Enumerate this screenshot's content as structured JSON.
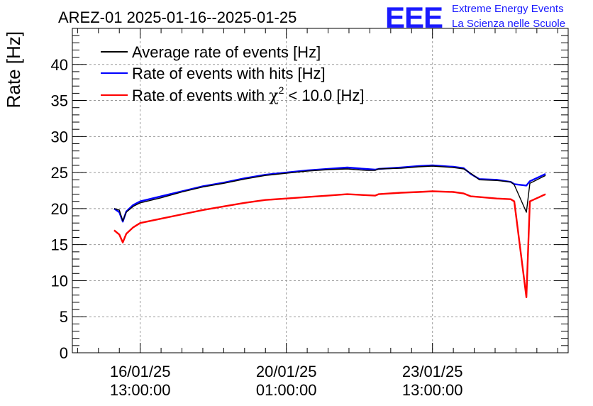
{
  "chart_data": {
    "type": "line",
    "title": "AREZ-01 2025-01-16--2025-01-25",
    "ylabel": "Rate [Hz]",
    "xlabel": "",
    "ylim": [
      0,
      45
    ],
    "y_ticks": [
      0,
      5,
      10,
      15,
      20,
      25,
      30,
      35,
      40
    ],
    "x_ticks": [
      {
        "line1": "16/01/25",
        "line2": "13:00:00",
        "t": 0
      },
      {
        "line1": "20/01/25",
        "line2": "01:00:00",
        "t": 84
      },
      {
        "line1": "23/01/25",
        "line2": "13:00:00",
        "t": 168
      }
    ],
    "xlim": [
      -39,
      246
    ],
    "grid": true,
    "legend_position": "top-left",
    "series": [
      {
        "name": "Average rate of events [Hz]",
        "color": "#000000",
        "points": [
          [
            -15,
            20.0
          ],
          [
            -12,
            19.8
          ],
          [
            -10,
            18.3
          ],
          [
            -8,
            19.5
          ],
          [
            -4,
            20.3
          ],
          [
            0,
            20.8
          ],
          [
            12,
            21.5
          ],
          [
            24,
            22.3
          ],
          [
            36,
            23.0
          ],
          [
            48,
            23.5
          ],
          [
            60,
            24.1
          ],
          [
            72,
            24.6
          ],
          [
            84,
            24.9
          ],
          [
            96,
            25.2
          ],
          [
            108,
            25.4
          ],
          [
            119,
            25.5
          ],
          [
            130,
            25.3
          ],
          [
            135,
            25.3
          ],
          [
            137,
            25.5
          ],
          [
            150,
            25.6
          ],
          [
            160,
            25.8
          ],
          [
            168,
            25.9
          ],
          [
            180,
            25.7
          ],
          [
            186,
            25.5
          ],
          [
            190,
            24.9
          ],
          [
            195,
            24.0
          ],
          [
            205,
            23.9
          ],
          [
            213,
            23.7
          ],
          [
            215,
            23.3
          ],
          [
            222,
            19.5
          ],
          [
            224,
            23.5
          ],
          [
            233,
            24.6
          ]
        ]
      },
      {
        "name": "Rate of events with hits [Hz]",
        "color": "#0000ff",
        "points": [
          [
            -15,
            20.0
          ],
          [
            -12,
            19.5
          ],
          [
            -10,
            18.2
          ],
          [
            -8,
            19.6
          ],
          [
            -4,
            20.5
          ],
          [
            0,
            21.0
          ],
          [
            12,
            21.7
          ],
          [
            24,
            22.4
          ],
          [
            36,
            23.1
          ],
          [
            48,
            23.6
          ],
          [
            60,
            24.2
          ],
          [
            72,
            24.7
          ],
          [
            84,
            25.0
          ],
          [
            96,
            25.3
          ],
          [
            108,
            25.5
          ],
          [
            119,
            25.7
          ],
          [
            135,
            25.4
          ],
          [
            137,
            25.5
          ],
          [
            150,
            25.7
          ],
          [
            160,
            25.9
          ],
          [
            168,
            26.0
          ],
          [
            180,
            25.8
          ],
          [
            186,
            25.6
          ],
          [
            190,
            24.8
          ],
          [
            195,
            24.1
          ],
          [
            205,
            24.0
          ],
          [
            213,
            23.7
          ],
          [
            215,
            23.4
          ],
          [
            222,
            23.2
          ],
          [
            224,
            23.8
          ],
          [
            233,
            24.8
          ]
        ]
      },
      {
        "name": "Rate of events with χ² < 10.0 [Hz]",
        "legend_text": "Rate of events with",
        "legend_symbol": "χ",
        "legend_sup": "2",
        "legend_suffix": " < 10.0 [Hz]",
        "color": "#ff0000",
        "points": [
          [
            -15,
            17.0
          ],
          [
            -12,
            16.4
          ],
          [
            -10,
            15.3
          ],
          [
            -8,
            16.5
          ],
          [
            -4,
            17.4
          ],
          [
            0,
            18.0
          ],
          [
            12,
            18.6
          ],
          [
            24,
            19.2
          ],
          [
            36,
            19.8
          ],
          [
            48,
            20.3
          ],
          [
            60,
            20.8
          ],
          [
            72,
            21.2
          ],
          [
            84,
            21.4
          ],
          [
            96,
            21.6
          ],
          [
            108,
            21.8
          ],
          [
            119,
            22.0
          ],
          [
            135,
            21.8
          ],
          [
            137,
            22.0
          ],
          [
            150,
            22.2
          ],
          [
            160,
            22.3
          ],
          [
            168,
            22.4
          ],
          [
            180,
            22.3
          ],
          [
            186,
            22.1
          ],
          [
            190,
            21.7
          ],
          [
            195,
            21.6
          ],
          [
            205,
            21.4
          ],
          [
            213,
            21.3
          ],
          [
            215,
            21.0
          ],
          [
            222,
            7.7
          ],
          [
            224,
            21.0
          ],
          [
            233,
            22.0
          ]
        ]
      }
    ]
  },
  "logo": {
    "mark": "EEE",
    "line1": "Extreme Energy Events",
    "line2": "La Scienza nelle Scuole",
    "color": "#1a1aff"
  }
}
